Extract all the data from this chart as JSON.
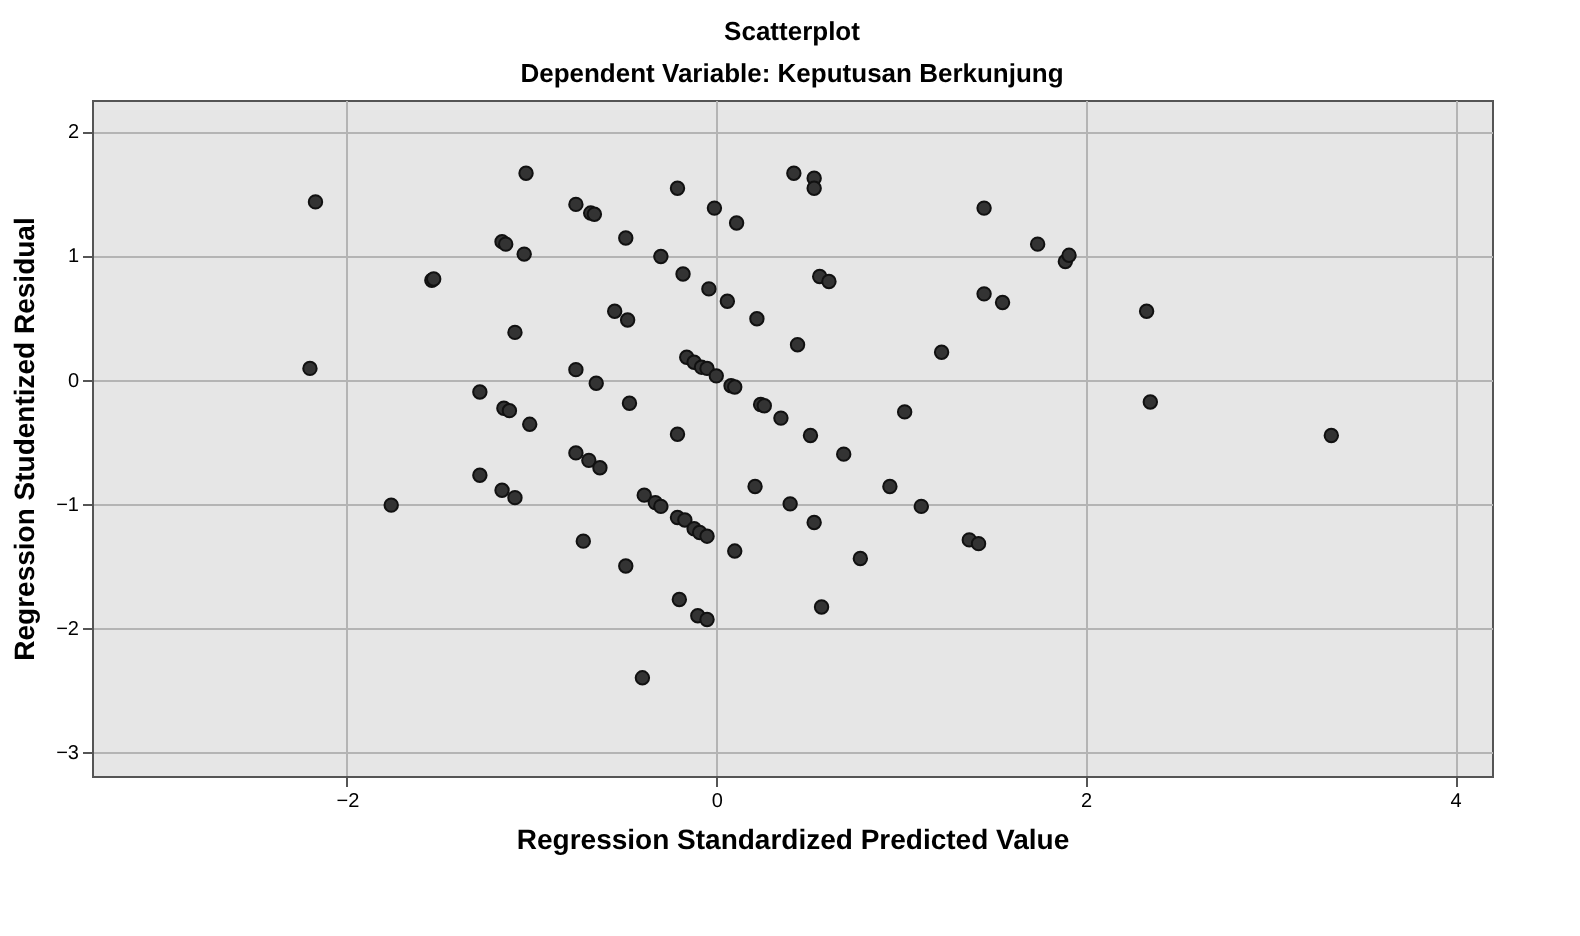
{
  "chart_data": {
    "type": "scatter",
    "title": "Scatterplot",
    "subtitle": "Dependent Variable: Keputusan Berkunjung",
    "xlabel": "Regression Standardized Predicted Value",
    "ylabel": "Regression Studentized Residual",
    "xlim": [
      -3.38,
      4.2
    ],
    "ylim": [
      -3.19,
      2.25
    ],
    "xticks": [
      -2,
      0,
      2,
      4
    ],
    "yticks": [
      -3,
      -2,
      -1,
      0,
      1,
      2
    ],
    "grid": true,
    "marker": "circle",
    "series": [
      {
        "color": "#333333",
        "x": [
          -2.17,
          -2.2,
          -1.54,
          -1.53,
          -1.76,
          -1.03,
          -1.16,
          -1.14,
          -1.04,
          -1.09,
          -1.28,
          -1.15,
          -1.12,
          -1.01,
          -1.28,
          -1.16,
          -1.09,
          -0.21,
          -0.76,
          -0.68,
          -0.66,
          -0.49,
          -0.3,
          -0.18,
          -0.04,
          -0.01,
          0.11,
          0.06,
          0.22,
          0.42,
          0.53,
          0.53,
          0.56,
          0.61,
          0.44,
          -0.55,
          -0.48,
          -0.76,
          -0.65,
          -0.16,
          -0.12,
          -0.08,
          -0.05,
          0.0,
          0.08,
          0.1,
          0.24,
          0.26,
          0.35,
          0.51,
          0.69,
          1.02,
          -0.47,
          -0.21,
          -0.76,
          -0.69,
          -0.63,
          -0.39,
          -0.33,
          -0.3,
          -0.21,
          -0.17,
          -0.12,
          -0.09,
          -0.05,
          0.21,
          0.4,
          0.53,
          0.94,
          1.11,
          0.78,
          0.1,
          -0.72,
          -0.49,
          -0.2,
          -0.1,
          -0.05,
          0.57,
          -0.4,
          1.45,
          1.74,
          1.89,
          1.91,
          1.45,
          1.55,
          1.22,
          2.33,
          2.35,
          3.33,
          1.37,
          1.42
        ],
        "values": [
          1.43,
          0.09,
          0.8,
          0.81,
          -1.01,
          1.66,
          1.11,
          1.09,
          1.01,
          0.38,
          -0.1,
          -0.23,
          -0.25,
          -0.36,
          -0.77,
          -0.89,
          -0.95,
          1.54,
          1.41,
          1.34,
          1.33,
          1.14,
          0.99,
          0.85,
          0.73,
          1.38,
          1.26,
          0.63,
          0.49,
          1.66,
          1.62,
          1.54,
          0.83,
          0.79,
          0.28,
          0.55,
          0.48,
          0.08,
          -0.03,
          0.18,
          0.14,
          0.1,
          0.09,
          0.03,
          -0.05,
          -0.06,
          -0.2,
          -0.21,
          -0.31,
          -0.45,
          -0.6,
          -0.26,
          -0.19,
          -0.44,
          -0.59,
          -0.65,
          -0.71,
          -0.93,
          -0.99,
          -1.02,
          -1.11,
          -1.13,
          -1.2,
          -1.23,
          -1.26,
          -0.86,
          -1.0,
          -1.15,
          -0.86,
          -1.02,
          -1.44,
          -1.38,
          -1.3,
          -1.5,
          -1.77,
          -1.9,
          -1.93,
          -1.83,
          -2.4,
          1.38,
          1.09,
          0.95,
          1.0,
          0.69,
          0.62,
          0.22,
          0.55,
          -0.18,
          -0.45,
          -1.29,
          -1.32
        ]
      }
    ]
  }
}
